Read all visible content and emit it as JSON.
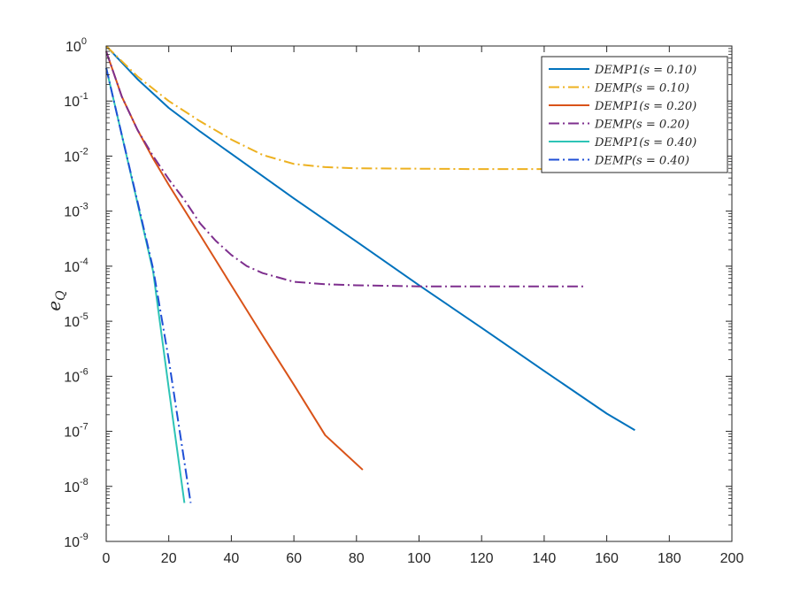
{
  "chart_data": {
    "type": "line",
    "title": "",
    "xlabel": "",
    "ylabel": "e",
    "ylabel_subscript": "Q",
    "xlim": [
      0,
      200
    ],
    "ylim": [
      1e-09,
      1
    ],
    "yscale": "log",
    "grid": false,
    "legend_position": "top-right",
    "x_ticks": [
      "0",
      "20",
      "40",
      "60",
      "80",
      "100",
      "120",
      "140",
      "160",
      "180",
      "200"
    ],
    "y_ticks": [
      {
        "base": "10",
        "exp": "0"
      },
      {
        "base": "10",
        "exp": "-1"
      },
      {
        "base": "10",
        "exp": "-2"
      },
      {
        "base": "10",
        "exp": "-3"
      },
      {
        "base": "10",
        "exp": "-4"
      },
      {
        "base": "10",
        "exp": "-5"
      },
      {
        "base": "10",
        "exp": "-6"
      },
      {
        "base": "10",
        "exp": "-7"
      },
      {
        "base": "10",
        "exp": "-8"
      },
      {
        "base": "10",
        "exp": "-9"
      }
    ],
    "series": [
      {
        "name": "DEMP1(s = 0.10)",
        "color": "#0072BD",
        "style": "solid",
        "x": [
          0,
          10,
          20,
          30,
          40,
          60,
          80,
          100,
          120,
          140,
          160,
          169
        ],
        "y": [
          1.0,
          0.25,
          0.075,
          0.028,
          0.011,
          0.0017,
          0.00028,
          4.5e-05,
          7.6e-06,
          1.25e-06,
          2.1e-07,
          1.05e-07
        ]
      },
      {
        "name": "DEMP(s = 0.10)",
        "color": "#EDB120",
        "style": "dashdot",
        "x": [
          0,
          10,
          20,
          30,
          40,
          50,
          60,
          70,
          80,
          100,
          120,
          140,
          160,
          180,
          200
        ],
        "y": [
          1.0,
          0.28,
          0.1,
          0.043,
          0.02,
          0.0105,
          0.0072,
          0.0063,
          0.006,
          0.0059,
          0.0058,
          0.0058,
          0.0058,
          0.0058,
          0.0058
        ]
      },
      {
        "name": "DEMP1(s = 0.20)",
        "color": "#D95319",
        "style": "solid",
        "x": [
          0,
          5,
          10,
          15,
          20,
          30,
          40,
          50,
          60,
          70,
          82
        ],
        "y": [
          0.8,
          0.12,
          0.03,
          0.009,
          0.003,
          0.00037,
          4.5e-05,
          5.5e-06,
          7e-07,
          8.5e-08,
          2e-08
        ]
      },
      {
        "name": "DEMP(s = 0.20)",
        "color": "#7E2F8E",
        "style": "dashdot",
        "x": [
          0,
          5,
          10,
          15,
          20,
          25,
          30,
          35,
          40,
          45,
          50,
          60,
          70,
          80,
          100,
          120,
          153
        ],
        "y": [
          0.8,
          0.12,
          0.03,
          0.01,
          0.0038,
          0.0016,
          0.0006,
          0.00029,
          0.00016,
          0.0001,
          7.5e-05,
          5.2e-05,
          4.7e-05,
          4.5e-05,
          4.3e-05,
          4.3e-05,
          4.3e-05
        ]
      },
      {
        "name": "DEMP1(s = 0.40)",
        "color": "#2EC4B6",
        "style": "solid",
        "x": [
          0,
          5,
          10,
          15,
          20,
          25
        ],
        "y": [
          0.4,
          0.024,
          0.0014,
          8e-05,
          6e-07,
          5e-09
        ]
      },
      {
        "name": "DEMP(s = 0.40)",
        "color": "#1F4FD6",
        "style": "dashdot",
        "x": [
          0,
          5,
          10,
          15,
          20,
          27
        ],
        "y": [
          0.4,
          0.024,
          0.0015,
          9e-05,
          2e-06,
          5e-09
        ]
      }
    ]
  }
}
